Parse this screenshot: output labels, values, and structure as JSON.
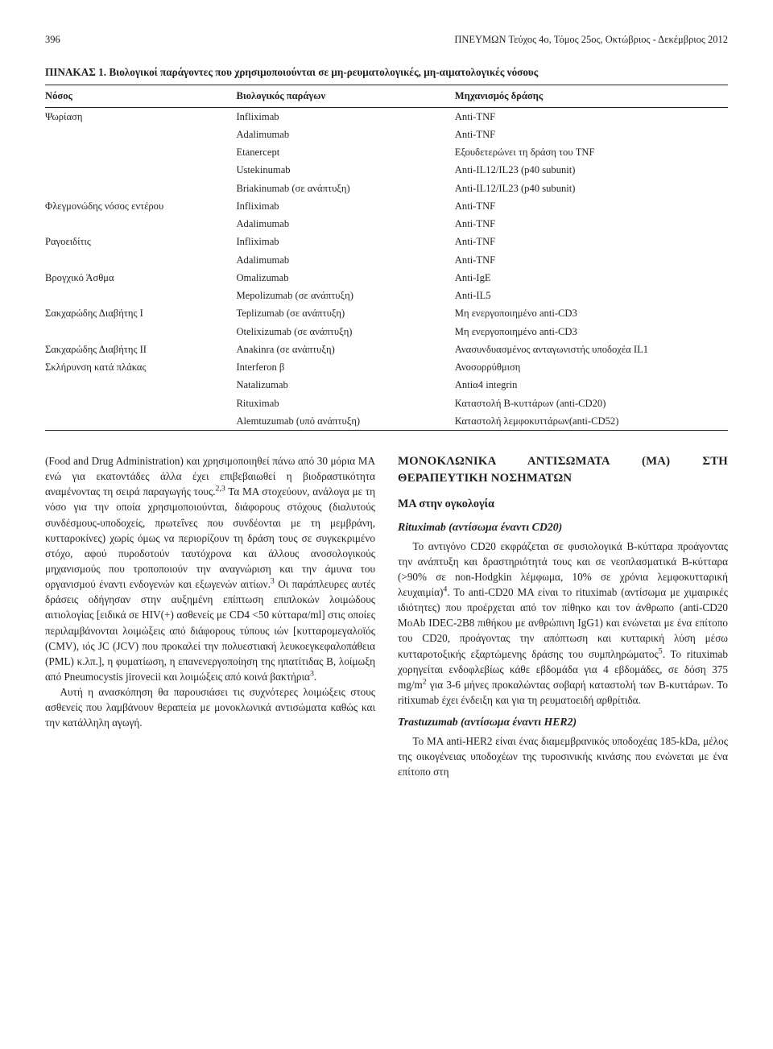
{
  "header": {
    "page_number": "396",
    "journal": "ΠΝΕΥΜΩΝ Τεύχος 4ο, Τόμος 25ος, Οκτώβριος - Δεκέμβριος 2012"
  },
  "table": {
    "title": "ΠΙΝΑΚΑΣ 1. Βιολογικοί παράγοντες που χρησιμοποιούνται σε μη-ρευματολογικές, μη-αιματολογικές νόσους",
    "columns": [
      "Νόσος",
      "Βιολογικός παράγων",
      "Μηχανισμός δράσης"
    ],
    "rows": [
      [
        "Ψωρίαση",
        "Infliximab",
        "Anti-TNF"
      ],
      [
        "",
        "Adalimumab",
        "Anti-TNF"
      ],
      [
        "",
        "Etanercept",
        "Εξουδετερώνει τη δράση του TNF"
      ],
      [
        "",
        "Ustekinumab",
        "Anti-IL12/IL23 (p40 subunit)"
      ],
      [
        "",
        "Briakinumab (σε ανάπτυξη)",
        "Anti-IL12/IL23 (p40 subunit)"
      ],
      [
        "Φλεγμονώδης νόσος εντέρου",
        "Infliximab",
        "Anti-TNF"
      ],
      [
        "",
        "Adalimumab",
        "Anti-TNF"
      ],
      [
        "Ραγοειδίτις",
        "Infliximab",
        "Anti-TNF"
      ],
      [
        "",
        "Adalimumab",
        "Anti-TNF"
      ],
      [
        "Βρογχικό Άσθμα",
        "Omalizumab",
        "Anti-IgE"
      ],
      [
        "",
        "Mepolizumab (σε ανάπτυξη)",
        "Anti-IL5"
      ],
      [
        "Σακχαρώδης Διαβήτης I",
        "Teplizumab (σε ανάπτυξη)",
        "Μη ενεργοποιημένο anti-CD3"
      ],
      [
        "",
        "Otelixizumab (σε ανάπτυξη)",
        "Μη ενεργοποιημένο anti-CD3"
      ],
      [
        "Σακχαρώδης Διαβήτης II",
        "Anakinra (σε ανάπτυξη)",
        "Ανασυνδυασμένος ανταγωνιστής υποδοχέα IL1"
      ],
      [
        "Σκλήρυνση κατά πλάκας",
        "Interferon β",
        "Ανοσορρύθμιση"
      ],
      [
        "",
        "Natalizumab",
        "Antiα4 integrin"
      ],
      [
        "",
        "Rituximab",
        "Καταστολή Β-κυττάρων (anti-CD20)"
      ],
      [
        "",
        "Alemtuzumab (υπό ανάπτυξη)",
        "Καταστολή λεμφοκυττάρων(anti-CD52)"
      ]
    ],
    "col_widths": [
      "28%",
      "32%",
      "40%"
    ],
    "border_color": "#231f20",
    "font_size": 12.6
  },
  "left_column": {
    "p1a": "(Food and Drug Administration) και χρησιμοποιηθεί πάνω από 30 μόρια ΜΑ ενώ για εκατοντάδες άλλα έχει επιβεβαιωθεί η βιοδραστικότητα αναμένοντας τη σειρά παραγωγής τους.",
    "p1b": " Τα ΜΑ στοχεύουν, ανάλογα με τη νόσο για την οποία χρησιμοποιούνται, διάφορους στόχους (διαλυτούς συνδέσμους-υποδοχείς, πρωτεΐνες που συνδέονται με τη μεμβράνη, κυτταροκίνες) χωρίς όμως να περιορίζουν τη δράση τους σε συγκεκριμένο στόχο, αφού πυροδοτούν ταυτόχρονα και άλλους ανοσολογικούς μηχανισμούς που τροποποιούν την αναγνώριση και την άμυνα του οργανισμού έναντι ενδογενών και εξωγενών αιτίων.",
    "p1c": " Οι παράπλευρες αυτές δράσεις οδήγησαν στην αυξημένη επίπτωση επιπλοκών λοιμώδους αιτιολογίας [ειδικά σε HIV(+) ασθενείς με CD4 <50 κύτταρα/ml] στις οποίες περιλαμβάνονται λοιμώξεις από διάφορους τύπους ιών [κυτταρομεγαλοϊός (CMV), ιός JC (JCV) που προκαλεί την πολυεστιακή λευκοεγκεφαλοπάθεια (PML) κ.λπ.], η φυματίωση, η επανενεργοποίηση της ηπατίτιδας Β, λοίμωξη από Pneumocystis jirovecii και λοιμώξεις από κοινά βακτήρια",
    "p2": "Αυτή η ανασκόπηση θα παρουσιάσει τις συχνότερες λοιμώξεις στους ασθενείς που λαμβάνουν θεραπεία με μονοκλωνικά αντισώματα καθώς και την κατάλληλη αγωγή.",
    "sup1": "2,3",
    "sup2": "3",
    "sup3": "3"
  },
  "right_column": {
    "h2": "ΜΟΝΟΚΛΩΝΙΚΑ ΑΝΤΙΣΩΜΑΤΑ (ΜΑ) ΣΤΗ ΘΕΡΑΠΕΥΤΙΚΗ ΝΟΣΗΜΑΤΩΝ",
    "h3": "ΜΑ στην ογκολογία",
    "h4a": "Rituximab (αντίσωμα έναντι CD20)",
    "p1a": "Το αντιγόνο CD20 εκφράζεται σε φυσιολογικά Β-κύτταρα προάγοντας την ανάπτυξη και δραστηριότητά τους και σε νεοπλασματικά Β-κύτταρα (>90% σε non-Hodgkin λέμφωμα, 10% σε χρόνια λεμφοκυτταρική λευχαιμία)",
    "p1b": ". Το anti-CD20 ΜΑ είναι το rituximab (αντίσωμα με χιμαιρικές ιδιότητες) που προέρχεται από τον πίθηκο και τον άνθρωπο (anti-CD20 MoAb IDEC-2B8 πιθήκου με ανθρώπινη IgG1) και ενώνεται με ένα επίτοπο του CD20, προάγοντας την απόπτωση και κυτταρική λύση μέσω κυτταροτοξικής εξαρτώμενης δράσης του συμπληρώματος",
    "p1c": ". Το rituximab χορηγείται ενδοφλεβίως κάθε εβδομάδα για 4 εβδομάδες, σε δόση 375 mg/m",
    "p1d": " για 3-6 μήνες προκαλώντας σοβαρή καταστολή των Β-κυττάρων. Το ritixumab έχει ένδειξη και για τη ρευματοειδή αρθρίτιδα.",
    "h4b": "Trastuzumab (αντίσωμα έναντι HER2)",
    "p2": "Το ΜΑ anti-HER2 είναι ένας διαμεμβρανικός υποδοχέας 185-kDa, μέλος της οικογένειας υποδoχέων της τυροσινικής κινάσης που ενώνεται με ένα επίτοπο στη",
    "sup4": "4",
    "sup5": "5",
    "sup_sq": "2"
  },
  "style": {
    "text_color": "#231f20",
    "background_color": "#ffffff",
    "body_font_size": 13.2,
    "heading_font_size": 14.8
  }
}
